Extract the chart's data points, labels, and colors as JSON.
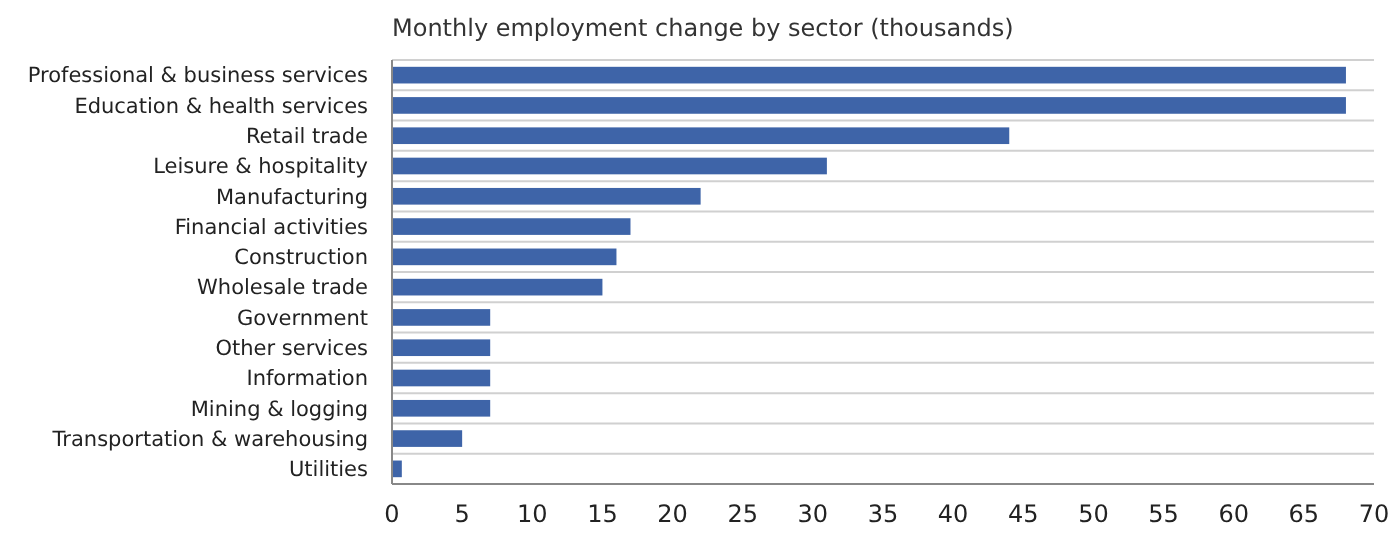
{
  "chart_data": {
    "type": "bar",
    "orientation": "horizontal",
    "title": "Monthly employment change by sector (thousands)",
    "categories": [
      "Professional & business services",
      "Education & health services",
      "Retail trade",
      "Leisure & hospitality",
      "Manufacturing",
      "Financial activities",
      "Construction",
      "Wholesale trade",
      "Government",
      "Other services",
      "Information",
      "Mining & logging",
      "Transportation & warehousing",
      "Utilities"
    ],
    "values": [
      68,
      68,
      44,
      31,
      22,
      17,
      16,
      15,
      7,
      7,
      7,
      7,
      5,
      0.7
    ],
    "color": "#3e64a8",
    "xlim": [
      0,
      70
    ],
    "xticks": [
      0,
      5,
      10,
      15,
      20,
      25,
      30,
      35,
      40,
      45,
      50,
      55,
      60,
      65,
      70
    ],
    "grid": "y"
  }
}
